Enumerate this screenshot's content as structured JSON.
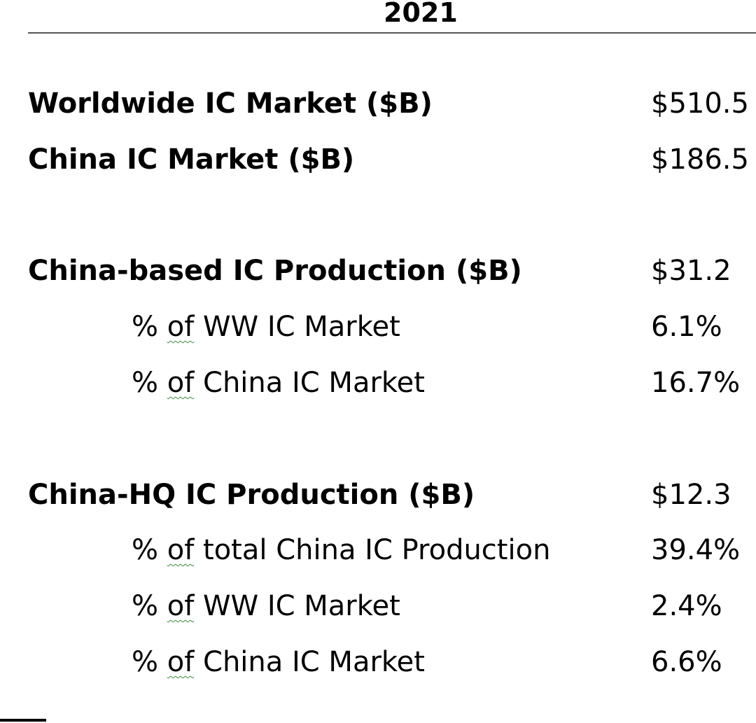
{
  "year": "2021",
  "rows": [
    {
      "label": "Worldwide IC Market ($B)",
      "value": "$510.5"
    },
    {
      "label": "China IC Market ($B)",
      "value": "$186.5"
    },
    {
      "label": "China-based IC Production ($B)",
      "value": "$31.2"
    },
    {
      "label_prefix": "% ",
      "label_of": "of",
      "label_rest": " WW IC Market",
      "value": "6.1%"
    },
    {
      "label_prefix": "% ",
      "label_of": "of",
      "label_rest": " China IC Market",
      "value": "16.7%"
    },
    {
      "label": "China-HQ IC Production ($B)",
      "value": "$12.3"
    },
    {
      "label_prefix": "% ",
      "label_of": "of",
      "label_rest": " total China IC Production",
      "value": "39.4%"
    },
    {
      "label_prefix": "% ",
      "label_of": "of",
      "label_rest": " WW IC Market",
      "value": "2.4%"
    },
    {
      "label_prefix": "% ",
      "label_of": "of",
      "label_rest": " China IC Market",
      "value": "6.6%"
    }
  ]
}
